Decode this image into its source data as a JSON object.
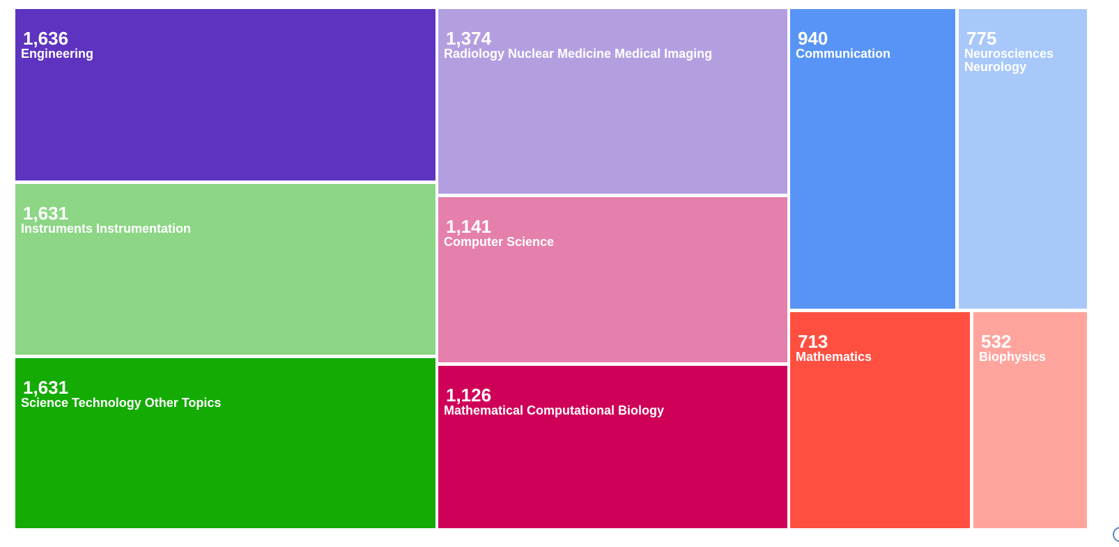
{
  "chart_data": {
    "type": "treemap",
    "items": [
      {
        "label": "Engineering",
        "value": 1636,
        "value_text": "1,636",
        "color": "#5e33bf"
      },
      {
        "label": "Instruments Instrumentation",
        "value": 1631,
        "value_text": "1,631",
        "color": "#8cd685"
      },
      {
        "label": "Science Technology Other Topics",
        "value": 1631,
        "value_text": "1,631",
        "color": "#14ab05"
      },
      {
        "label": "Radiology Nuclear Medicine Medical Imaging",
        "value": 1374,
        "value_text": "1,374",
        "color": "#b39fe0"
      },
      {
        "label": "Computer Science",
        "value": 1141,
        "value_text": "1,141",
        "color": "#e57fab"
      },
      {
        "label": "Mathematical Computational Biology",
        "value": 1126,
        "value_text": "1,126",
        "color": "#cf0057"
      },
      {
        "label": "Communication",
        "value": 940,
        "value_text": "940",
        "color": "#5794f5"
      },
      {
        "label": "Neurosciences Neurology",
        "value": 775,
        "value_text": "775",
        "color": "#a8c8fa"
      },
      {
        "label": "Mathematics",
        "value": 713,
        "value_text": "713",
        "color": "#ff4f40"
      },
      {
        "label": "Biophysics",
        "value": 532,
        "value_text": "532",
        "color": "#ffa49d"
      }
    ]
  }
}
